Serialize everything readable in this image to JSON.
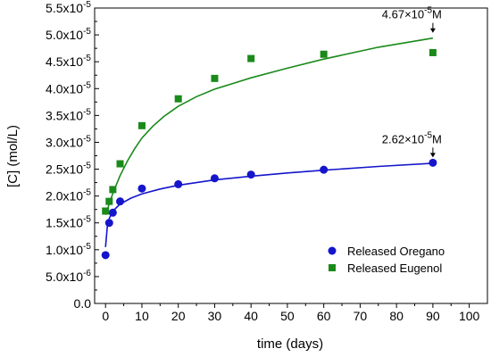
{
  "chart_data": {
    "type": "scatter",
    "xlabel": "time (days)",
    "ylabel": "[C] (mol/L)",
    "xlim": [
      -3,
      105
    ],
    "ylim": [
      0,
      5.5e-05
    ],
    "x_ticks": [
      0,
      10,
      20,
      30,
      40,
      50,
      60,
      70,
      80,
      90,
      100
    ],
    "y_ticks": [
      {
        "value": 0,
        "mantissa": "0.0",
        "exp": ""
      },
      {
        "value": 5e-06,
        "mantissa": "5.0x10",
        "exp": "-6"
      },
      {
        "value": 1e-05,
        "mantissa": "1.0x10",
        "exp": "-5"
      },
      {
        "value": 1.5e-05,
        "mantissa": "1.5x10",
        "exp": "-5"
      },
      {
        "value": 2e-05,
        "mantissa": "2.0x10",
        "exp": "-5"
      },
      {
        "value": 2.5e-05,
        "mantissa": "2.5x10",
        "exp": "-5"
      },
      {
        "value": 3e-05,
        "mantissa": "3.0x10",
        "exp": "-5"
      },
      {
        "value": 3.5e-05,
        "mantissa": "3.5x10",
        "exp": "-5"
      },
      {
        "value": 4e-05,
        "mantissa": "4.0x10",
        "exp": "-5"
      },
      {
        "value": 4.5e-05,
        "mantissa": "4.5x10",
        "exp": "-5"
      },
      {
        "value": 5e-05,
        "mantissa": "5.0x10",
        "exp": "-5"
      },
      {
        "value": 5.5e-05,
        "mantissa": "5.5x10",
        "exp": "-5"
      }
    ],
    "grid": false,
    "legend_position": "bottom-right",
    "series": [
      {
        "name": "Released Oregano",
        "color": "#1515cc",
        "marker": "circle",
        "x": [
          0,
          1,
          2,
          4,
          10,
          20,
          30,
          40,
          60,
          90
        ],
        "y": [
          9e-06,
          1.5e-05,
          1.69e-05,
          1.9e-05,
          2.14e-05,
          2.22e-05,
          2.33e-05,
          2.4e-05,
          2.49e-05,
          2.62e-05
        ],
        "fit": [
          [
            0,
            1.05e-05
          ],
          [
            0.5,
            1.45e-05
          ],
          [
            1,
            1.58e-05
          ],
          [
            2,
            1.72e-05
          ],
          [
            4,
            1.85e-05
          ],
          [
            7,
            1.96e-05
          ],
          [
            10,
            2.04e-05
          ],
          [
            15,
            2.13e-05
          ],
          [
            20,
            2.2e-05
          ],
          [
            30,
            2.3e-05
          ],
          [
            40,
            2.37e-05
          ],
          [
            50,
            2.43e-05
          ],
          [
            60,
            2.48e-05
          ],
          [
            75,
            2.55e-05
          ],
          [
            90,
            2.61e-05
          ]
        ]
      },
      {
        "name": "Released Eugenol",
        "color": "#1a8a1a",
        "marker": "square",
        "x": [
          0,
          1,
          2,
          4,
          10,
          20,
          30,
          40,
          60,
          90
        ],
        "y": [
          1.72e-05,
          1.9e-05,
          2.12e-05,
          2.6e-05,
          3.31e-05,
          3.81e-05,
          4.19e-05,
          4.56e-05,
          4.64e-05,
          4.67e-05
        ],
        "fit": [
          [
            0,
            1.65e-05
          ],
          [
            1,
            1.85e-05
          ],
          [
            2,
            2.05e-05
          ],
          [
            4,
            2.38e-05
          ],
          [
            6,
            2.65e-05
          ],
          [
            8,
            2.88e-05
          ],
          [
            10,
            3.08e-05
          ],
          [
            13,
            3.3e-05
          ],
          [
            16,
            3.48e-05
          ],
          [
            20,
            3.67e-05
          ],
          [
            25,
            3.85e-05
          ],
          [
            30,
            3.99e-05
          ],
          [
            40,
            4.2e-05
          ],
          [
            50,
            4.38e-05
          ],
          [
            60,
            4.55e-05
          ],
          [
            75,
            4.77e-05
          ],
          [
            90,
            4.94e-05
          ]
        ]
      }
    ],
    "annotations": [
      {
        "text": "4.67×10",
        "exp": "-5",
        "suffix": "M",
        "x": 90,
        "y": 4.94e-05
      },
      {
        "text": "2.62×10",
        "exp": "-5",
        "suffix": "M",
        "x": 90,
        "y": 2.62e-05
      }
    ]
  }
}
